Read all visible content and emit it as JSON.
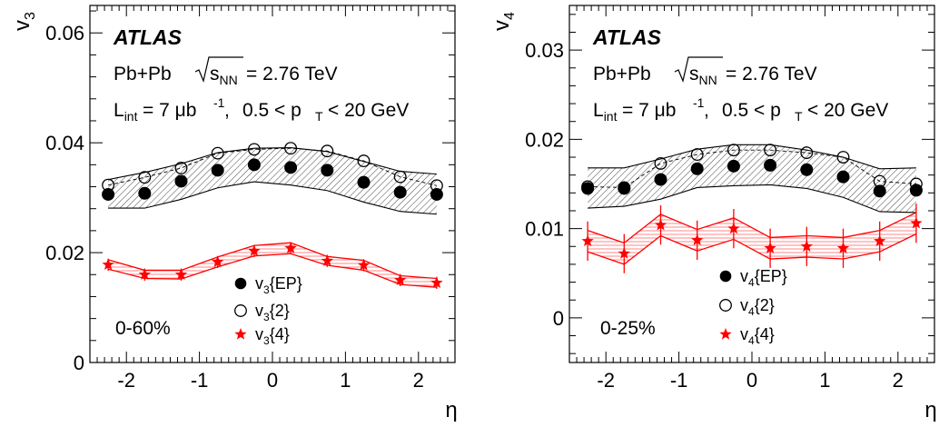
{
  "chart_data": [
    {
      "type": "scatter",
      "panel": "v3",
      "ylabel": "v3",
      "xlabel": "η",
      "ylim": [
        0,
        0.065
      ],
      "xlim": [
        -2.5,
        2.5
      ],
      "x_ticks": [
        -2,
        -1,
        0,
        1,
        2
      ],
      "y_ticks": [
        0,
        0.02,
        0.04,
        0.06
      ],
      "y_tick_labels": [
        "0",
        "0.02",
        "0.04",
        "0.06"
      ],
      "annotations": {
        "experiment": "ATLAS",
        "system": "Pb+Pb",
        "energy_label": "= 2.76 TeV",
        "lumi_label": "= 7 μb",
        "pt_label": "0.5 < p",
        "pt_tail": "< 20 GeV",
        "centrality": "0-60%"
      },
      "legend_placement": "bottom-center",
      "x": [
        -2.25,
        -1.75,
        -1.25,
        -0.75,
        -0.25,
        0.25,
        0.75,
        1.25,
        1.75,
        2.25
      ],
      "series": [
        {
          "name": "v3{EP}",
          "marker": "filled-circle",
          "color": "#000000",
          "values": [
            0.0306,
            0.0308,
            0.033,
            0.035,
            0.036,
            0.0355,
            0.035,
            0.0328,
            0.031,
            0.0306
          ],
          "band_upper": [
            0.0333,
            0.0346,
            0.0362,
            0.0382,
            0.039,
            0.0391,
            0.0384,
            0.0366,
            0.0348,
            0.0343
          ],
          "band_lower": [
            0.0281,
            0.0281,
            0.0297,
            0.0318,
            0.0329,
            0.0323,
            0.0313,
            0.0292,
            0.0275,
            0.027
          ]
        },
        {
          "name": "v3{2}",
          "marker": "open-circle",
          "color": "#000000",
          "values": [
            0.0323,
            0.0337,
            0.0354,
            0.0381,
            0.0388,
            0.039,
            0.0385,
            0.0367,
            0.0338,
            0.0322
          ]
        },
        {
          "name": "v3{4}",
          "marker": "star",
          "color": "#ff0000",
          "values": [
            0.0178,
            0.016,
            0.016,
            0.0183,
            0.0203,
            0.0208,
            0.0185,
            0.0177,
            0.015,
            0.0145
          ],
          "band_upper": [
            0.0187,
            0.0168,
            0.0168,
            0.0192,
            0.0213,
            0.0218,
            0.0193,
            0.0186,
            0.0158,
            0.0153
          ],
          "band_lower": [
            0.017,
            0.0153,
            0.0152,
            0.0174,
            0.0194,
            0.0198,
            0.0177,
            0.0168,
            0.0142,
            0.0137
          ],
          "errors": [
            0.0011,
            0.0011,
            0.0011,
            0.0011,
            0.0011,
            0.0011,
            0.0011,
            0.0011,
            0.0011,
            0.0011
          ]
        }
      ]
    },
    {
      "type": "scatter",
      "panel": "v4",
      "ylabel": "v4",
      "xlabel": "η",
      "ylim": [
        -0.005,
        0.035
      ],
      "xlim": [
        -2.5,
        2.5
      ],
      "x_ticks": [
        -2,
        -1,
        0,
        1,
        2
      ],
      "y_ticks": [
        0,
        0.01,
        0.02,
        0.03
      ],
      "y_tick_labels": [
        "0",
        "0.01",
        "0.02",
        "0.03"
      ],
      "annotations": {
        "experiment": "ATLAS",
        "system": "Pb+Pb",
        "energy_label": "= 2.76 TeV",
        "lumi_label": "= 7 μb",
        "pt_label": "0.5 < p",
        "pt_tail": "< 20 GeV",
        "centrality": "0-25%"
      },
      "legend_placement": "bottom-center",
      "x": [
        -2.25,
        -1.75,
        -1.25,
        -0.75,
        -0.25,
        0.25,
        0.75,
        1.25,
        1.75,
        2.25
      ],
      "series": [
        {
          "name": "v4{EP}",
          "marker": "filled-circle",
          "color": "#000000",
          "values": [
            0.0145,
            0.0145,
            0.0155,
            0.0167,
            0.017,
            0.0171,
            0.0166,
            0.0158,
            0.0142,
            0.0143
          ],
          "band_upper": [
            0.0168,
            0.0168,
            0.0178,
            0.0189,
            0.0194,
            0.0194,
            0.0188,
            0.018,
            0.0167,
            0.0168
          ],
          "band_lower": [
            0.0123,
            0.0125,
            0.0133,
            0.0146,
            0.0148,
            0.0149,
            0.0145,
            0.0135,
            0.0119,
            0.0118
          ]
        },
        {
          "name": "v4{2}",
          "marker": "open-circle",
          "color": "#000000",
          "values": [
            0.0147,
            0.0146,
            0.0173,
            0.0183,
            0.0188,
            0.0188,
            0.0185,
            0.018,
            0.0153,
            0.015
          ]
        },
        {
          "name": "v4{4}",
          "marker": "star",
          "color": "#ff0000",
          "values": [
            0.0086,
            0.0072,
            0.0104,
            0.0087,
            0.01,
            0.0078,
            0.008,
            0.0078,
            0.0086,
            0.0106
          ],
          "band_upper": [
            0.0098,
            0.0084,
            0.0116,
            0.0099,
            0.0112,
            0.009,
            0.0092,
            0.009,
            0.0098,
            0.0118
          ],
          "band_lower": [
            0.0074,
            0.006,
            0.0092,
            0.0075,
            0.0088,
            0.0066,
            0.0068,
            0.0066,
            0.0074,
            0.0094
          ],
          "errors": [
            0.0022,
            0.0022,
            0.0022,
            0.0022,
            0.0022,
            0.0022,
            0.0022,
            0.0022,
            0.0022,
            0.0022
          ]
        }
      ]
    }
  ],
  "colors": {
    "axis": "#000000",
    "band_hatch": "#000000",
    "red": "#ff0000",
    "red_band": "#ffcccc"
  },
  "icons": {
    "v3_legend_ep": "filled-circle-icon",
    "v3_legend_2": "open-circle-icon",
    "v3_legend_4": "star-icon"
  }
}
